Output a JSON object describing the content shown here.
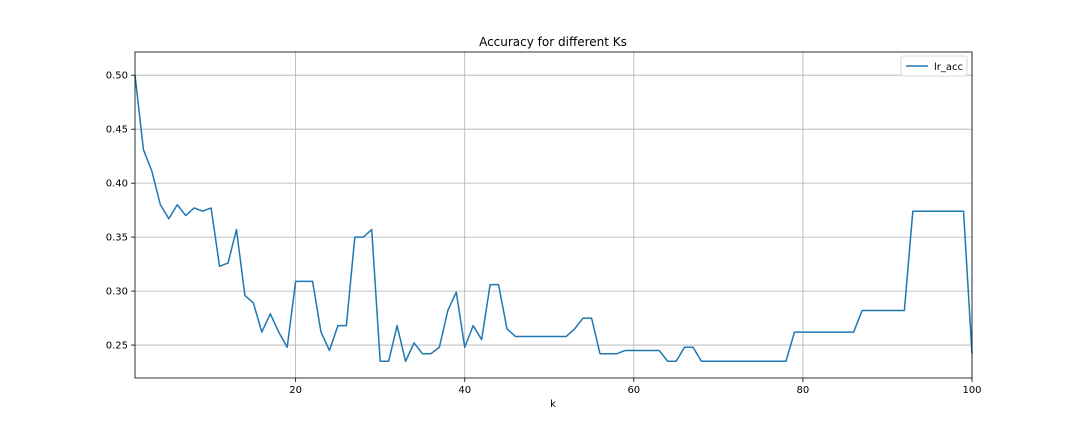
{
  "chart_data": {
    "type": "line",
    "title": "Accuracy for different Ks",
    "xlabel": "k",
    "ylabel": "",
    "xlim": [
      1,
      100
    ],
    "ylim": [
      0.2195,
      0.5215
    ],
    "xticks": [
      20,
      40,
      60,
      80,
      100
    ],
    "yticks": [
      0.25,
      0.3,
      0.35,
      0.4,
      0.45,
      0.5
    ],
    "xtick_labels": [
      "20",
      "40",
      "60",
      "80",
      "100"
    ],
    "ytick_labels": [
      "0.25",
      "0.30",
      "0.35",
      "0.40",
      "0.45",
      "0.50"
    ],
    "grid": true,
    "legend_position": "top-right",
    "series": [
      {
        "name": "lr_acc",
        "color": "#1f77b4",
        "x": [
          1,
          2,
          3,
          4,
          5,
          6,
          7,
          8,
          9,
          10,
          11,
          12,
          13,
          14,
          15,
          16,
          17,
          18,
          19,
          20,
          21,
          22,
          23,
          24,
          25,
          26,
          27,
          28,
          29,
          30,
          31,
          32,
          33,
          34,
          35,
          36,
          37,
          38,
          39,
          40,
          41,
          42,
          43,
          44,
          45,
          46,
          47,
          48,
          49,
          50,
          51,
          52,
          53,
          54,
          55,
          56,
          57,
          58,
          59,
          60,
          61,
          62,
          63,
          64,
          65,
          66,
          67,
          68,
          69,
          70,
          71,
          72,
          73,
          74,
          75,
          76,
          77,
          78,
          79,
          80,
          81,
          82,
          83,
          84,
          85,
          86,
          87,
          88,
          89,
          90,
          91,
          92,
          93,
          94,
          95,
          96,
          97,
          98,
          99,
          100
        ],
        "values": [
          0.5,
          0.431,
          0.411,
          0.38,
          0.367,
          0.38,
          0.37,
          0.377,
          0.374,
          0.377,
          0.323,
          0.326,
          0.357,
          0.296,
          0.289,
          0.262,
          0.279,
          0.262,
          0.248,
          0.309,
          0.309,
          0.309,
          0.262,
          0.245,
          0.268,
          0.268,
          0.35,
          0.35,
          0.357,
          0.235,
          0.235,
          0.268,
          0.235,
          0.252,
          0.242,
          0.242,
          0.248,
          0.282,
          0.299,
          0.248,
          0.268,
          0.255,
          0.306,
          0.306,
          0.265,
          0.258,
          0.258,
          0.258,
          0.258,
          0.258,
          0.258,
          0.258,
          0.265,
          0.275,
          0.275,
          0.242,
          0.242,
          0.242,
          0.245,
          0.245,
          0.245,
          0.245,
          0.245,
          0.235,
          0.235,
          0.248,
          0.248,
          0.235,
          0.235,
          0.235,
          0.235,
          0.235,
          0.235,
          0.235,
          0.235,
          0.235,
          0.235,
          0.235,
          0.262,
          0.262,
          0.262,
          0.262,
          0.262,
          0.262,
          0.262,
          0.262,
          0.282,
          0.282,
          0.282,
          0.282,
          0.282,
          0.282,
          0.374,
          0.374,
          0.374,
          0.374,
          0.374,
          0.374,
          0.374,
          0.242
        ]
      }
    ]
  }
}
